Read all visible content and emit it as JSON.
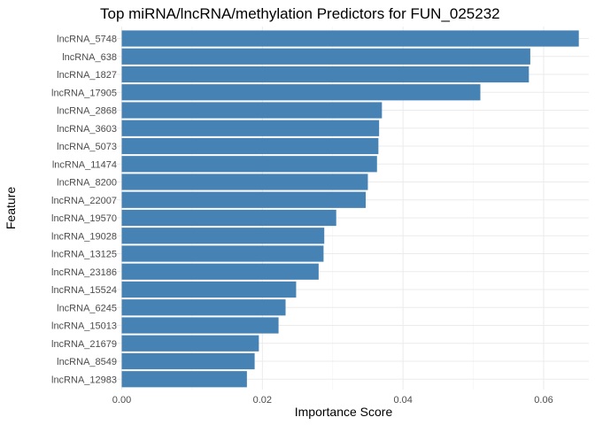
{
  "chart_data": {
    "type": "bar",
    "orientation": "horizontal",
    "title": "Top miRNA/lncRNA/methylation Predictors for FUN_025232",
    "xlabel": "Importance Score",
    "ylabel": "Feature",
    "xlim": [
      0,
      0.066
    ],
    "xticks": [
      0,
      0.02,
      0.04,
      0.06
    ],
    "xtick_labels": [
      "0.00",
      "0.02",
      "0.04",
      "0.06"
    ],
    "grid": true,
    "legend": "none",
    "bar_color": "#4682B4",
    "categories": [
      "lncRNA_5748",
      "lncRNA_638",
      "lncRNA_1827",
      "lncRNA_17905",
      "lncRNA_2868",
      "lncRNA_3603",
      "lncRNA_5073",
      "lncRNA_11474",
      "lncRNA_8200",
      "lncRNA_22007",
      "lncRNA_19570",
      "lncRNA_19028",
      "lncRNA_13125",
      "lncRNA_23186",
      "lncRNA_15524",
      "lncRNA_6245",
      "lncRNA_15013",
      "lncRNA_21679",
      "lncRNA_8549",
      "lncRNA_12983"
    ],
    "values": [
      0.065,
      0.0581,
      0.0579,
      0.051,
      0.037,
      0.0366,
      0.0365,
      0.0363,
      0.035,
      0.0347,
      0.0305,
      0.0288,
      0.0287,
      0.028,
      0.0248,
      0.0233,
      0.0223,
      0.0195,
      0.0189,
      0.0178
    ]
  }
}
